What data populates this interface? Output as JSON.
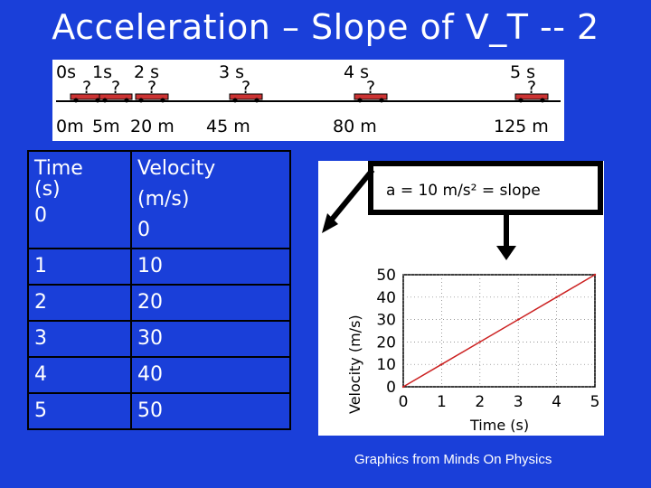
{
  "title": "Acceleration – Slope of V_T -- 2",
  "strip": {
    "time_labels": [
      "0s",
      "1s",
      "2 s",
      "3 s",
      "4 s",
      "5 s"
    ],
    "distance_labels": [
      "0m",
      "5m",
      "20 m",
      "45 m",
      "80 m",
      "125 m"
    ],
    "car_mark": "?"
  },
  "table": {
    "header_time_line1": "Time",
    "header_time_line2": "(s)",
    "header_velocity_line1": "Velocity",
    "header_velocity_line2": "(m/s)",
    "rows": [
      {
        "time": "0",
        "velocity": "0"
      },
      {
        "time": "1",
        "velocity": "10"
      },
      {
        "time": "2",
        "velocity": "20"
      },
      {
        "time": "3",
        "velocity": "30"
      },
      {
        "time": "4",
        "velocity": "40"
      },
      {
        "time": "5",
        "velocity": "50"
      }
    ]
  },
  "chart_data": {
    "type": "line",
    "annotation": "a = 10 m/s² = slope",
    "xlabel": "Time (s)",
    "ylabel": "Velocity (m/s)",
    "x": [
      0,
      1,
      2,
      3,
      4,
      5
    ],
    "y": [
      0,
      10,
      20,
      30,
      40,
      50
    ],
    "xlim": [
      0,
      5
    ],
    "ylim": [
      0,
      50
    ],
    "xticks": [
      "0",
      "1",
      "2",
      "3",
      "4",
      "5"
    ],
    "yticks": [
      "0",
      "10",
      "20",
      "30",
      "40",
      "50"
    ],
    "line_color": "#cc2222"
  },
  "credit": "Graphics from Minds On Physics",
  "colors": {
    "background": "#1a3fd9",
    "car": "#cc3333"
  }
}
